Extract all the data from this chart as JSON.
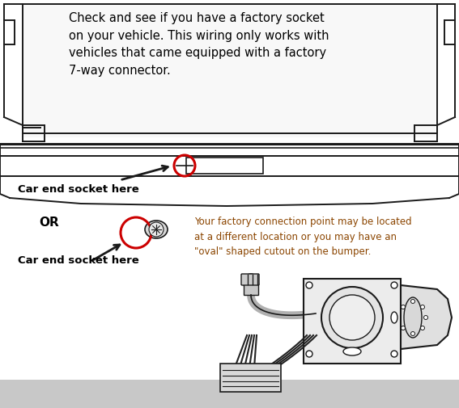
{
  "bg_fill": "#ffffff",
  "info_text": "Check and see if you have a factory socket\non your vehicle. This wiring only works with\nvehicles that came equipped with a factory\n7-way connector.",
  "label1": "Car end socket here",
  "label2": "Car end socket here",
  "or_text": "OR",
  "note_text": "Your factory connection point may be located\nat a different location or you may have an\n\"oval\" shaped cutout on the bumper.",
  "circle_color": "#cc0000",
  "label_color": "#000000",
  "text_color": "#000000",
  "note_color": "#8B4500",
  "line_color": "#1a1a1a",
  "shadow_color": "#c8c8c8",
  "info_fontsize": 10.5,
  "label_fontsize": 9.5,
  "or_fontsize": 11,
  "note_fontsize": 8.5
}
